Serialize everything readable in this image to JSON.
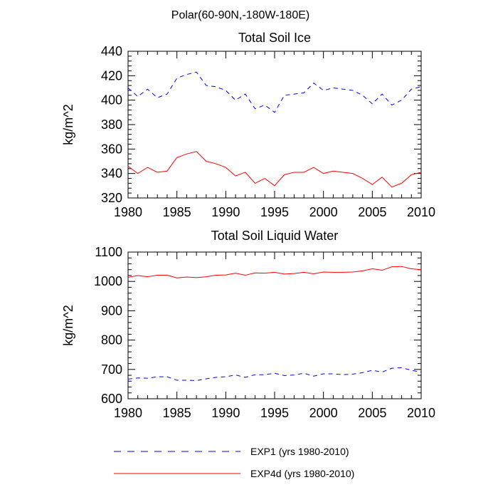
{
  "figure": {
    "title": "Polar(60-90N,-180W-180E)"
  },
  "legend": {
    "placement": "bottom",
    "entries": [
      {
        "label": "EXP1 (yrs 1980-2010)",
        "color": "#0000ff",
        "style": "dashed"
      },
      {
        "label": "EXP4d (yrs 1980-2010)",
        "color": "#ff0000",
        "style": "solid"
      }
    ]
  },
  "chart_data": [
    {
      "type": "line",
      "title": "Total Soil Ice",
      "xlabel": "",
      "ylabel": "kg/m^2",
      "xlim": [
        1980,
        2010
      ],
      "ylim": [
        320,
        440
      ],
      "xticks": [
        1980,
        1985,
        1990,
        1995,
        2000,
        2005,
        2010
      ],
      "yticks": [
        320,
        340,
        360,
        380,
        400,
        420,
        440
      ],
      "x": [
        1980,
        1981,
        1982,
        1983,
        1984,
        1985,
        1986,
        1987,
        1988,
        1989,
        1990,
        1991,
        1992,
        1993,
        1994,
        1995,
        1996,
        1997,
        1998,
        1999,
        2000,
        2001,
        2002,
        2003,
        2004,
        2005,
        2006,
        2007,
        2008,
        2009,
        2010
      ],
      "series": [
        {
          "name": "EXP1 (yrs 1980-2010)",
          "color": "#0000ff",
          "style": "dashed",
          "values": [
            410,
            403,
            409,
            402,
            405,
            418,
            421,
            423,
            412,
            411,
            408,
            400,
            405,
            393,
            396,
            390,
            404,
            405,
            406,
            414,
            408,
            410,
            409,
            408,
            404,
            397,
            405,
            396,
            400,
            409,
            411
          ]
        },
        {
          "name": "EXP4d (yrs 1980-2010)",
          "color": "#ff0000",
          "style": "solid",
          "values": [
            346,
            340,
            345,
            341,
            342,
            353,
            356,
            358,
            350,
            348,
            345,
            338,
            341,
            332,
            336,
            330,
            339,
            341,
            341,
            345,
            340,
            342,
            341,
            340,
            336,
            331,
            337,
            329,
            332,
            339,
            341
          ]
        }
      ]
    },
    {
      "type": "line",
      "title": "Total Soil Liquid Water",
      "xlabel": "",
      "ylabel": "kg/m^2",
      "xlim": [
        1980,
        2010
      ],
      "ylim": [
        600,
        1100
      ],
      "xticks": [
        1980,
        1985,
        1990,
        1995,
        2000,
        2005,
        2010
      ],
      "yticks": [
        600,
        700,
        800,
        900,
        1000,
        1100
      ],
      "x": [
        1980,
        1981,
        1982,
        1983,
        1984,
        1985,
        1986,
        1987,
        1988,
        1989,
        1990,
        1991,
        1992,
        1993,
        1994,
        1995,
        1996,
        1997,
        1998,
        1999,
        2000,
        2001,
        2002,
        2003,
        2004,
        2005,
        2006,
        2007,
        2008,
        2009,
        2010
      ],
      "series": [
        {
          "name": "EXP1 (yrs 1980-2010)",
          "color": "#0000ff",
          "style": "dashed",
          "values": [
            667,
            671,
            670,
            675,
            675,
            663,
            663,
            662,
            668,
            673,
            675,
            681,
            673,
            682,
            682,
            687,
            679,
            681,
            687,
            677,
            685,
            685,
            682,
            684,
            689,
            697,
            691,
            704,
            706,
            697,
            691
          ]
        },
        {
          "name": "EXP4d (yrs 1980-2010)",
          "color": "#ff0000",
          "style": "solid",
          "values": [
            1014,
            1020,
            1016,
            1021,
            1021,
            1012,
            1015,
            1013,
            1016,
            1021,
            1022,
            1028,
            1021,
            1029,
            1028,
            1031,
            1025,
            1027,
            1031,
            1026,
            1032,
            1031,
            1031,
            1032,
            1036,
            1043,
            1038,
            1050,
            1051,
            1043,
            1040
          ]
        }
      ]
    }
  ]
}
